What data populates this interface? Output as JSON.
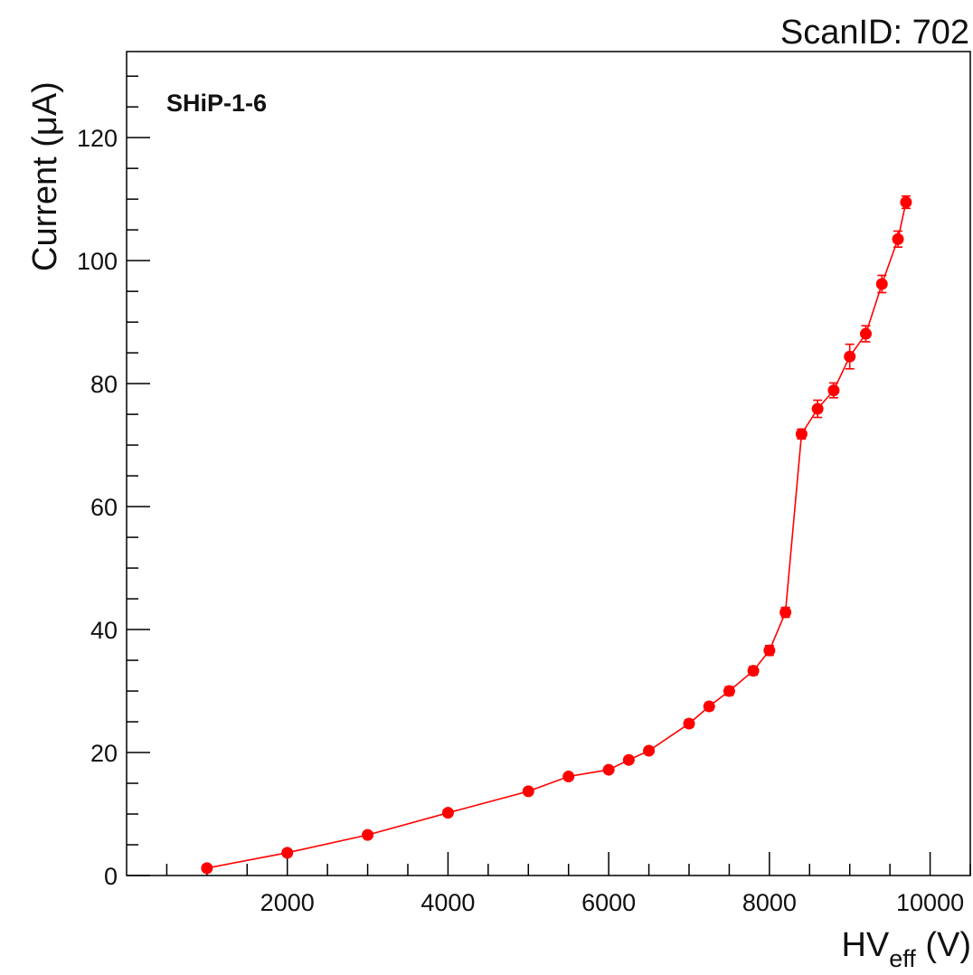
{
  "header": {
    "scan_id": "ScanID: 702"
  },
  "annotation": {
    "label": "SHiP-1-6"
  },
  "chart_data": {
    "type": "line",
    "title": "",
    "xlabel": {
      "main": "HV",
      "sub": "eff",
      "unit": " (V)"
    },
    "ylabel": "Current (μA)",
    "xlim": [
      0,
      10500
    ],
    "ylim": [
      0,
      134
    ],
    "xticks": [
      2000,
      4000,
      6000,
      8000,
      10000
    ],
    "yticks": [
      0,
      20,
      40,
      60,
      80,
      100,
      120
    ],
    "grid": false,
    "marker_color": "#ff0000",
    "series": [
      {
        "x": [
          1000,
          2000,
          3000,
          4000,
          5000,
          5500,
          6000,
          6250,
          6500,
          7000,
          7250,
          7500,
          7800,
          8000,
          8200,
          8400,
          8600,
          8800,
          9000,
          9200,
          9400,
          9600,
          9700
        ],
        "y": [
          1.2,
          3.7,
          6.6,
          10.2,
          13.7,
          16.1,
          17.2,
          18.8,
          20.3,
          24.7,
          27.5,
          30.0,
          33.3,
          36.6,
          42.8,
          71.8,
          75.9,
          78.9,
          84.4,
          88.1,
          96.2,
          103.5,
          109.5
        ],
        "yerr": [
          0.3,
          0.3,
          0.3,
          0.3,
          0.4,
          0.4,
          0.4,
          0.4,
          0.5,
          0.6,
          0.6,
          0.7,
          0.7,
          0.8,
          0.8,
          0.8,
          1.4,
          1.2,
          2.0,
          1.3,
          1.4,
          1.3,
          1.0
        ]
      }
    ]
  }
}
